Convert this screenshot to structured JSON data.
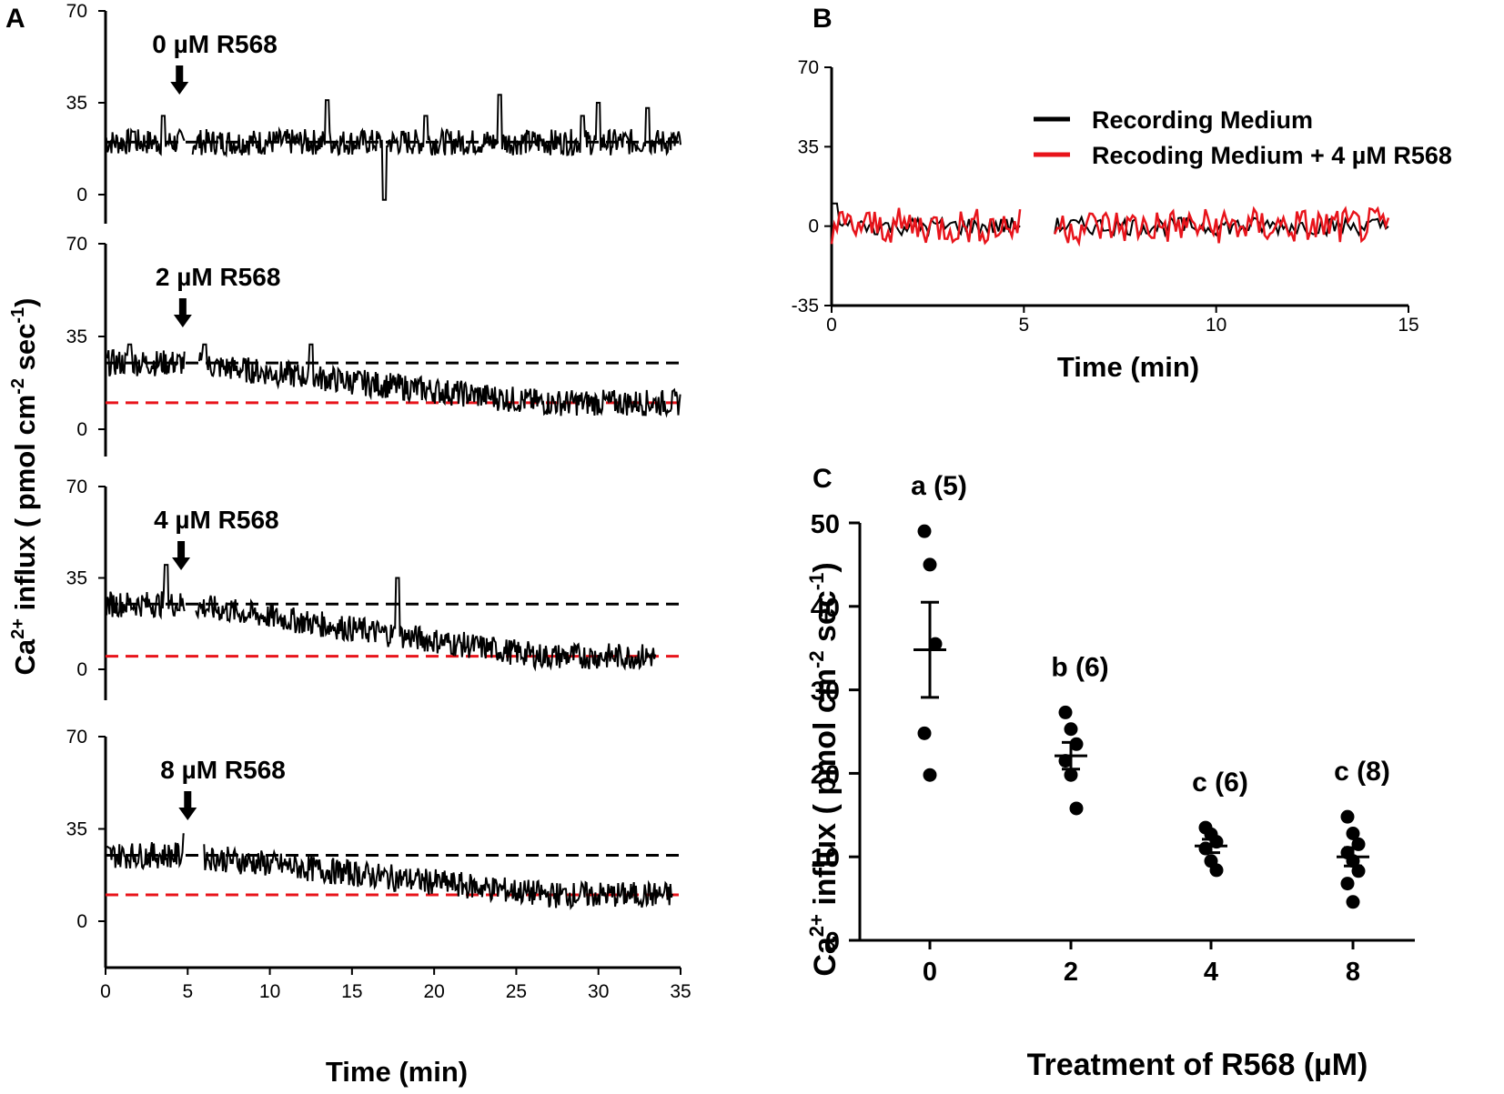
{
  "panels": {
    "a": "A",
    "b": "B",
    "c": "C"
  },
  "ylabel_shared": {
    "prefix": "Ca",
    "sup1": "2+",
    "mid": " influx ( pmol cm",
    "sup2": "-2",
    "mid2": " sec",
    "sup3": "-1",
    "suffix": ")"
  },
  "colors": {
    "trace": "#000000",
    "red": "#e8141b",
    "axis": "#000000"
  },
  "chart_data": [
    {
      "id": "A",
      "type": "line",
      "xlabel": "Time (min)",
      "xlim": [
        0,
        35
      ],
      "xticks": [
        "0",
        "5",
        "10",
        "15",
        "20",
        "25",
        "30",
        "35"
      ],
      "ylim": [
        -20,
        70
      ],
      "yticks": [
        "0",
        "35",
        "70"
      ],
      "subplots": [
        {
          "treatment": "0 µM R568",
          "arrow_x": 4.5,
          "baseline": 20,
          "level": 20,
          "segments": [
            [
              0,
              4.8,
              20
            ],
            [
              5.3,
              35,
              20
            ]
          ],
          "spikes": [
            [
              13.5,
              36
            ],
            [
              17,
              -2
            ],
            [
              24,
              38
            ],
            [
              30,
              35
            ],
            [
              33,
              33
            ],
            [
              1.7,
              24
            ],
            [
              3.5,
              30
            ],
            [
              19.5,
              30
            ],
            [
              29,
              30
            ]
          ],
          "black_dash": 20,
          "red_dash": null
        },
        {
          "treatment": "2 µM R568",
          "arrow_x": 4.7,
          "baseline": 25,
          "level": 10,
          "segments": [
            [
              0,
              4.8,
              25
            ],
            [
              5.7,
              35,
              25
            ]
          ],
          "spikes": [
            [
              1.5,
              32
            ],
            [
              6,
              32
            ],
            [
              12.5,
              32
            ]
          ],
          "black_dash": 25,
          "red_dash": 10
        },
        {
          "treatment": "4 µM R568",
          "arrow_x": 4.6,
          "baseline": 25,
          "level": 5,
          "segments": [
            [
              0,
              4.8,
              25
            ],
            [
              5.5,
              33.5,
              25
            ]
          ],
          "spikes": [
            [
              3.7,
              40
            ],
            [
              17.8,
              35
            ]
          ],
          "black_dash": 25,
          "red_dash": 5
        },
        {
          "treatment": "8 µM R568",
          "arrow_x": 5.0,
          "baseline": 25,
          "level": 10,
          "segments": [
            [
              0,
              4.8,
              25
            ],
            [
              6.0,
              34.5,
              25
            ]
          ],
          "spikes": [
            [
              4.8,
              33
            ]
          ],
          "black_dash": 25,
          "red_dash": 10
        }
      ]
    },
    {
      "id": "B",
      "type": "line",
      "xlabel": "Time (min)",
      "xlim": [
        0,
        15
      ],
      "xticks": [
        "0",
        "5",
        "10",
        "15"
      ],
      "ylim": [
        -35,
        70
      ],
      "yticks": [
        "-35",
        "0",
        "35",
        "70"
      ],
      "gap": [
        4.9,
        5.8
      ],
      "xend": 14.5,
      "series": [
        {
          "name": "Recording Medium",
          "color": "#000000",
          "amplitude": 4
        },
        {
          "name": "Recoding Medium + 4 µM R568",
          "color": "#e8141b",
          "amplitude": 8
        }
      ]
    },
    {
      "id": "C",
      "type": "scatter",
      "xlabel": "Treatment of R568 (µM)",
      "categories": [
        "0",
        "2",
        "4",
        "8"
      ],
      "ylim": [
        0,
        50
      ],
      "yticks": [
        "0",
        "10",
        "20",
        "30",
        "40",
        "50"
      ],
      "groups": [
        {
          "label": "a (5)",
          "points": [
            49,
            45,
            35.5,
            24.8,
            19.8
          ],
          "mean": 34.8,
          "sem": 5.7
        },
        {
          "label": "b (6)",
          "points": [
            27.3,
            25.3,
            23.5,
            21.5,
            19.8,
            15.8
          ],
          "mean": 22.1,
          "sem": 1.6
        },
        {
          "label": "c (6)",
          "points": [
            13.5,
            12.7,
            11.8,
            11.0,
            9.5,
            8.4
          ],
          "mean": 11.3,
          "sem": 0.8
        },
        {
          "label": "c (8)",
          "points": [
            14.8,
            12.8,
            11.5,
            10.5,
            9.5,
            8.3,
            6.8,
            4.6
          ],
          "mean": 10.0,
          "sem": 1.1
        }
      ]
    }
  ]
}
